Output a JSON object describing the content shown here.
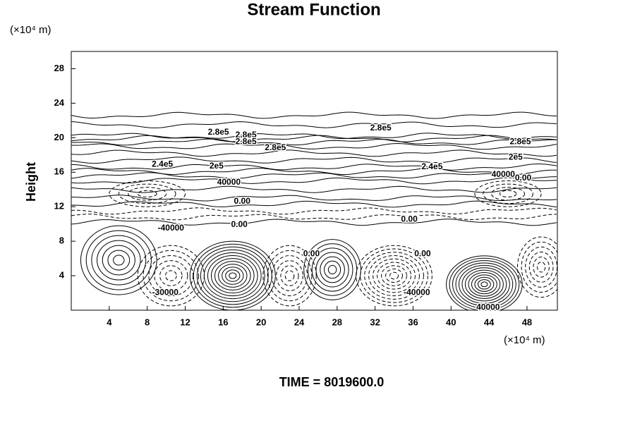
{
  "chart_data": {
    "type": "contour",
    "title": "Stream Function",
    "ylabel": "Height",
    "x_unit_label": "(×10⁴ m)",
    "y_unit_label": "(×10⁴ m)",
    "footer": "TIME = 8019600.0",
    "xlim": [
      0,
      51.2
    ],
    "ylim": [
      0,
      30
    ],
    "xticks": [
      4,
      8,
      12,
      16,
      20,
      24,
      28,
      32,
      36,
      40,
      44,
      48
    ],
    "yticks": [
      4,
      8,
      12,
      16,
      20,
      24,
      28
    ],
    "color": "#000000",
    "cells": [
      {
        "x": 5,
        "y": 5.8,
        "rx": 4,
        "ry": 4,
        "levels": 7,
        "style": "solid"
      },
      {
        "x": 10.5,
        "y": 4,
        "rx": 3.5,
        "ry": 3.5,
        "levels": 6,
        "style": "dashed"
      },
      {
        "x": 17,
        "y": 4,
        "rx": 4.5,
        "ry": 4,
        "levels": 12,
        "style": "solid"
      },
      {
        "x": 23,
        "y": 4,
        "rx": 2.8,
        "ry": 3.5,
        "levels": 6,
        "style": "dashed"
      },
      {
        "x": 27.5,
        "y": 4.7,
        "rx": 3,
        "ry": 3.5,
        "levels": 7,
        "style": "solid"
      },
      {
        "x": 34,
        "y": 4,
        "rx": 4,
        "ry": 3.5,
        "levels": 9,
        "style": "dashed"
      },
      {
        "x": 43.5,
        "y": 3,
        "rx": 4,
        "ry": 3.3,
        "levels": 12,
        "style": "solid"
      },
      {
        "x": 49.5,
        "y": 5,
        "rx": 2.5,
        "ry": 3.5,
        "levels": 6,
        "style": "dashed"
      },
      {
        "x": 8,
        "y": 13.5,
        "rx": 4,
        "ry": 1.5,
        "levels": 4,
        "style": "dashed"
      },
      {
        "x": 46,
        "y": 13.5,
        "rx": 3.5,
        "ry": 1.5,
        "levels": 4,
        "style": "dashed"
      }
    ],
    "layers": [
      {
        "y": 10.2,
        "style": "solid"
      },
      {
        "y": 10.8,
        "style": "dashed"
      },
      {
        "y": 11.5,
        "style": "dashed"
      },
      {
        "y": 12.3,
        "style": "solid"
      },
      {
        "y": 13,
        "style": "solid"
      },
      {
        "y": 14,
        "style": "solid"
      },
      {
        "y": 15,
        "style": "solid"
      },
      {
        "y": 15.6,
        "style": "solid"
      },
      {
        "y": 16.1,
        "style": "solid"
      },
      {
        "y": 16.6,
        "style": "solid"
      },
      {
        "y": 17.4,
        "style": "solid"
      },
      {
        "y": 18.2,
        "style": "solid"
      },
      {
        "y": 19,
        "style": "solid"
      },
      {
        "y": 19.5,
        "style": "solid"
      },
      {
        "y": 19.9,
        "style": "solid"
      },
      {
        "y": 20.2,
        "style": "solid"
      },
      {
        "y": 21.5,
        "style": "solid"
      },
      {
        "y": 22.6,
        "style": "solid"
      }
    ],
    "annotations": [
      {
        "text": "2.8e5",
        "x": 15.5,
        "y": 20.6
      },
      {
        "text": "2.8e5",
        "x": 18.4,
        "y": 20.3
      },
      {
        "text": "2.8e5",
        "x": 18.4,
        "y": 19.5
      },
      {
        "text": "2.8e5",
        "x": 21.5,
        "y": 18.8
      },
      {
        "text": "2.8e5",
        "x": 32.6,
        "y": 21.1
      },
      {
        "text": "2.8e5",
        "x": 47.3,
        "y": 19.5
      },
      {
        "text": "2e5",
        "x": 46.8,
        "y": 17.7
      },
      {
        "text": "2.4e5",
        "x": 9.6,
        "y": 16.9
      },
      {
        "text": "2e5",
        "x": 15.3,
        "y": 16.7
      },
      {
        "text": "2.4e5",
        "x": 38,
        "y": 16.6
      },
      {
        "text": "40000",
        "x": 45.5,
        "y": 15.7
      },
      {
        "text": "0.00",
        "x": 47.6,
        "y": 15.3
      },
      {
        "text": "40000",
        "x": 16.6,
        "y": 14.8
      },
      {
        "text": "0.00",
        "x": 18,
        "y": 12.6
      },
      {
        "text": "-40000",
        "x": 10.5,
        "y": 9.5
      },
      {
        "text": "0.00",
        "x": 17.7,
        "y": 9.9
      },
      {
        "text": "0.00",
        "x": 35.6,
        "y": 10.5
      },
      {
        "text": "0.00",
        "x": 25.3,
        "y": 6.5
      },
      {
        "text": "0.00",
        "x": 37,
        "y": 6.5
      },
      {
        "text": "-30000",
        "x": 9.9,
        "y": 2
      },
      {
        "text": "-40000",
        "x": 36.4,
        "y": 2
      },
      {
        "text": "40000",
        "x": 43.9,
        "y": 0.3
      }
    ]
  }
}
